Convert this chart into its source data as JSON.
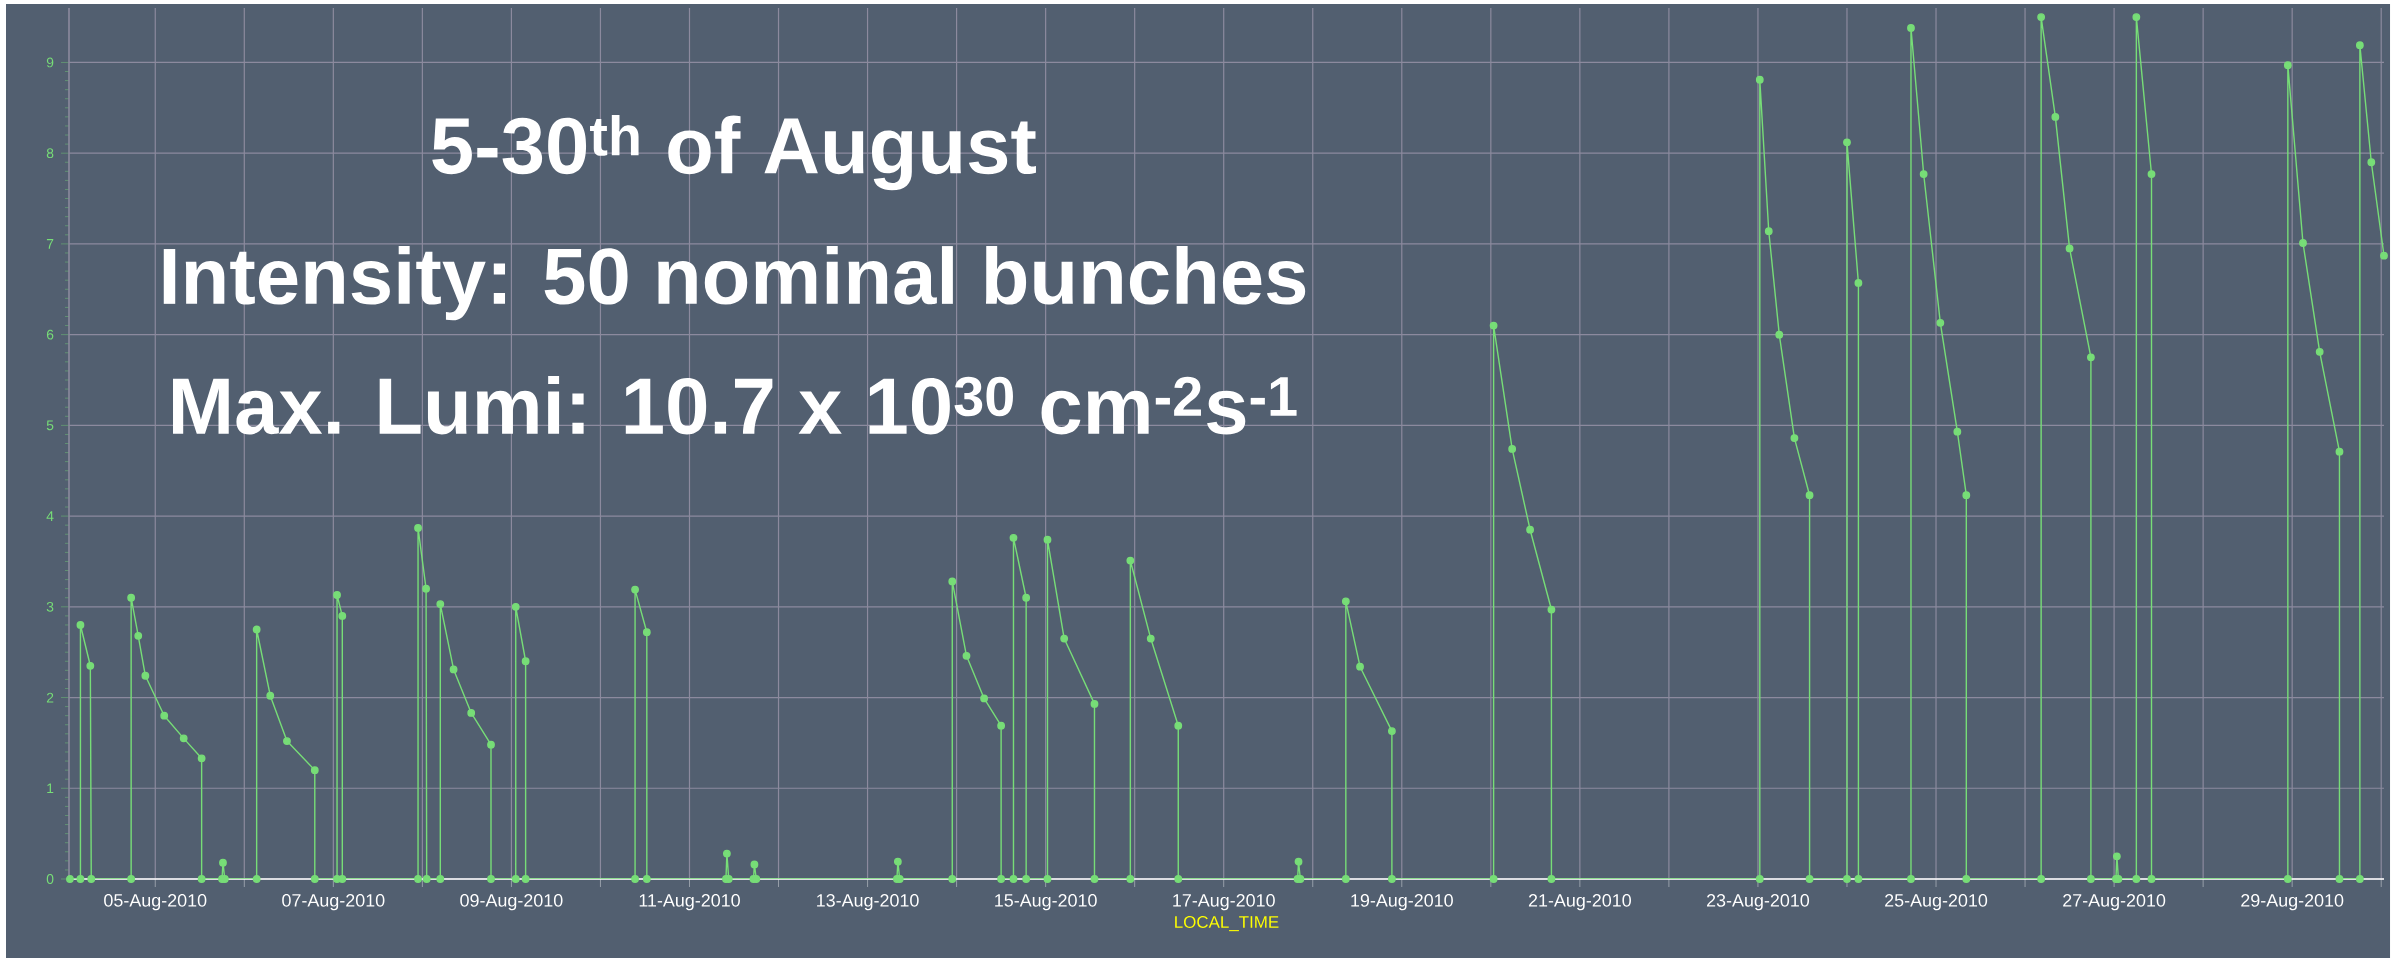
{
  "chart_data": {
    "type": "line",
    "color": "#77dd77",
    "marker": "circle",
    "line_style": "solid",
    "grid": true,
    "xlabel": "LOCAL_TIME",
    "annotations": [
      "5-30$^{th}$ of August",
      "Intensity: 50 nominal bunches",
      "Max. Lumi: 10.7 x 10$^{30}$ cm$^{-2}$s$^{-1}$"
    ],
    "xlim": [
      "2010-08-04T00:45",
      "2010-08-30T00:45"
    ],
    "ylim": [
      0,
      9.6
    ],
    "yticks": [
      0,
      1,
      2,
      3,
      4,
      5,
      6,
      7,
      8,
      9
    ],
    "xticks": [
      {
        "value": "2010-08-05",
        "label": "05-Aug-2010"
      },
      {
        "value": "2010-08-06",
        "label": null
      },
      {
        "value": "2010-08-07",
        "label": "07-Aug-2010"
      },
      {
        "value": "2010-08-08",
        "label": null
      },
      {
        "value": "2010-08-09",
        "label": "09-Aug-2010"
      },
      {
        "value": "2010-08-10",
        "label": null
      },
      {
        "value": "2010-08-11",
        "label": "11-Aug-2010"
      },
      {
        "value": "2010-08-12",
        "label": null
      },
      {
        "value": "2010-08-13",
        "label": "13-Aug-2010"
      },
      {
        "value": "2010-08-14",
        "label": null
      },
      {
        "value": "2010-08-15",
        "label": "15-Aug-2010"
      },
      {
        "value": "2010-08-16",
        "label": null
      },
      {
        "value": "2010-08-17",
        "label": "17-Aug-2010"
      },
      {
        "value": "2010-08-18",
        "label": null
      },
      {
        "value": "2010-08-19",
        "label": "19-Aug-2010"
      },
      {
        "value": "2010-08-20",
        "label": null
      },
      {
        "value": "2010-08-21",
        "label": "21-Aug-2010"
      },
      {
        "value": "2010-08-22",
        "label": null
      },
      {
        "value": "2010-08-23",
        "label": "23-Aug-2010"
      },
      {
        "value": "2010-08-24",
        "label": null
      },
      {
        "value": "2010-08-25",
        "label": "25-Aug-2010"
      },
      {
        "value": "2010-08-26",
        "label": null
      },
      {
        "value": "2010-08-27",
        "label": "27-Aug-2010"
      },
      {
        "value": "2010-08-28",
        "label": null
      },
      {
        "value": "2010-08-29",
        "label": "29-Aug-2010"
      },
      {
        "value": "2010-08-30",
        "label": null
      }
    ],
    "x": [
      "2010-08-04T01:00",
      "2010-08-04T03:50",
      "2010-08-04T03:50",
      "2010-08-04T06:30",
      "2010-08-04T06:45",
      "2010-08-04T17:30",
      "2010-08-04T17:30",
      "2010-08-04T19:25",
      "2010-08-04T21:20",
      "2010-08-05T02:25",
      "2010-08-05T07:40",
      "2010-08-05T12:30",
      "2010-08-05T12:30",
      "2010-08-05T18:00",
      "2010-08-05T18:15",
      "2010-08-05T18:45",
      "2010-08-06T03:20",
      "2010-08-06T03:20",
      "2010-08-06T07:00",
      "2010-08-06T11:30",
      "2010-08-06T19:00",
      "2010-08-06T19:00",
      "2010-08-07T01:00",
      "2010-08-07T01:00",
      "2010-08-07T02:25",
      "2010-08-07T02:25",
      "2010-08-07T22:50",
      "2010-08-07T22:50",
      "2010-08-08T01:00",
      "2010-08-08T01:10",
      "2010-08-08T04:50",
      "2010-08-08T04:50",
      "2010-08-08T08:25",
      "2010-08-08T13:10",
      "2010-08-08T18:30",
      "2010-08-08T18:30",
      "2010-08-09T01:10",
      "2010-08-09T01:10",
      "2010-08-09T03:50",
      "2010-08-09T03:50",
      "2010-08-10T09:20",
      "2010-08-10T09:20",
      "2010-08-10T12:30",
      "2010-08-10T12:30",
      "2010-08-11T09:50",
      "2010-08-11T10:05",
      "2010-08-11T10:35",
      "2010-08-11T17:15",
      "2010-08-11T17:30",
      "2010-08-11T18:00",
      "2010-08-13T07:55",
      "2010-08-13T08:10",
      "2010-08-13T08:40",
      "2010-08-13T22:50",
      "2010-08-13T22:50",
      "2010-08-14T02:40",
      "2010-08-14T07:25",
      "2010-08-14T12:00",
      "2010-08-14T12:00",
      "2010-08-14T15:20",
      "2010-08-14T15:20",
      "2010-08-14T18:45",
      "2010-08-14T18:45",
      "2010-08-15T00:30",
      "2010-08-15T00:30",
      "2010-08-15T05:00",
      "2010-08-15T13:10",
      "2010-08-15T13:10",
      "2010-08-15T22:50",
      "2010-08-15T22:50",
      "2010-08-16T04:20",
      "2010-08-16T11:45",
      "2010-08-16T11:45",
      "2010-08-17T19:55",
      "2010-08-17T20:10",
      "2010-08-17T20:40",
      "2010-08-18T08:55",
      "2010-08-18T08:55",
      "2010-08-18T12:45",
      "2010-08-18T21:20",
      "2010-08-18T21:20",
      "2010-08-20T00:45",
      "2010-08-20T00:45",
      "2010-08-20T05:45",
      "2010-08-20T10:35",
      "2010-08-20T16:20",
      "2010-08-20T16:20",
      "2010-08-23T00:30",
      "2010-08-23T00:30",
      "2010-08-23T02:55",
      "2010-08-23T05:45",
      "2010-08-23T09:50",
      "2010-08-23T13:55",
      "2010-08-23T13:55",
      "2010-08-24T00:00",
      "2010-08-24T00:00",
      "2010-08-24T03:05",
      "2010-08-24T03:05",
      "2010-08-24T17:15",
      "2010-08-24T17:15",
      "2010-08-24T20:40",
      "2010-08-25T01:10",
      "2010-08-25T05:45",
      "2010-08-25T08:10",
      "2010-08-25T08:10",
      "2010-08-26T04:20",
      "2010-08-26T04:20",
      "2010-08-26T08:10",
      "2010-08-26T12:00",
      "2010-08-26T17:45",
      "2010-08-26T17:45",
      "2010-08-27T00:30",
      "2010-08-27T00:45",
      "2010-08-27T01:10",
      "2010-08-27T06:00",
      "2010-08-27T06:00",
      "2010-08-27T10:05",
      "2010-08-27T10:05",
      "2010-08-28T22:50",
      "2010-08-28T22:50",
      "2010-08-29T02:55",
      "2010-08-29T07:25",
      "2010-08-29T12:45",
      "2010-08-29T12:45",
      "2010-08-29T18:15",
      "2010-08-29T18:15",
      "2010-08-29T21:20",
      "2010-08-30T00:45"
    ],
    "values": [
      0,
      0,
      2.8,
      2.35,
      0,
      0,
      3.1,
      2.68,
      2.24,
      1.8,
      1.55,
      1.33,
      0,
      0,
      0.18,
      0,
      0,
      2.75,
      2.02,
      1.52,
      1.2,
      0,
      0,
      3.13,
      2.9,
      0,
      0,
      3.87,
      3.2,
      0,
      0,
      3.03,
      2.31,
      1.83,
      1.48,
      0,
      0,
      3.0,
      2.4,
      0,
      0,
      3.19,
      2.72,
      0,
      0,
      0.28,
      0,
      0,
      0.16,
      0,
      0,
      0.19,
      0,
      0,
      3.28,
      2.46,
      1.99,
      1.69,
      0,
      0,
      3.76,
      3.1,
      0,
      0,
      3.74,
      2.65,
      1.93,
      0,
      0,
      3.51,
      2.65,
      1.69,
      0,
      0,
      0.19,
      0,
      0,
      3.06,
      2.34,
      1.63,
      0,
      0,
      6.1,
      4.74,
      3.85,
      2.97,
      0,
      0,
      8.81,
      7.14,
      6.0,
      4.86,
      4.23,
      0,
      0,
      8.12,
      6.57,
      0,
      0,
      9.38,
      7.77,
      6.13,
      4.93,
      4.23,
      0,
      0,
      9.5,
      8.4,
      6.95,
      5.75,
      0,
      0,
      0.25,
      0,
      0,
      9.5,
      7.77,
      0,
      0,
      8.97,
      7.01,
      5.81,
      4.71,
      0,
      0,
      9.19,
      7.9,
      6.87
    ]
  }
}
